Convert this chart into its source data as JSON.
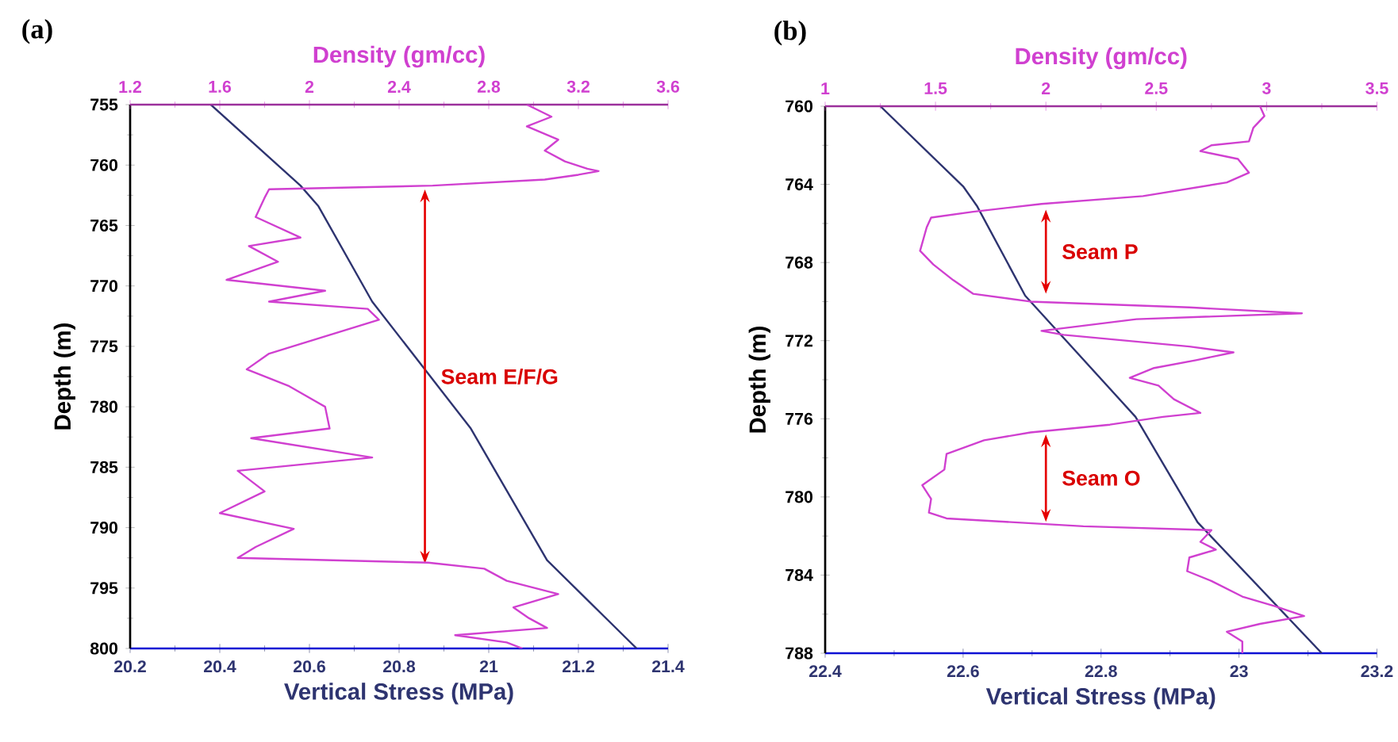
{
  "chart_data": [
    {
      "type": "line",
      "title": "(a)",
      "xlabel": "Vertical Stress (MPa)",
      "x2label": "Density (gm/cc)",
      "ylabel": "Depth (m)",
      "orientation": "horizontal",
      "xlim": [
        20.2,
        21.4
      ],
      "xticks": [
        20.2,
        20.4,
        20.6,
        20.8,
        21,
        21.2,
        21.4
      ],
      "x2lim": [
        1.2,
        3.6
      ],
      "x2ticks": [
        1.2,
        1.6,
        2,
        2.4,
        2.8,
        3.2,
        3.6
      ],
      "ylim": [
        800,
        755
      ],
      "yticks": [
        755,
        760,
        765,
        770,
        775,
        780,
        785,
        790,
        795,
        800
      ],
      "series": [
        {
          "color": "#d040d0",
          "axis": "x2",
          "x": [
            755,
            756,
            756.8,
            757.9,
            758.8,
            759.7,
            760.3,
            760.5,
            760.8,
            761.2,
            761.7,
            762,
            762.7,
            764.3,
            766,
            766.7,
            768,
            769.5,
            770.4,
            771.3,
            771.9,
            772.8,
            774.8,
            775.6,
            776.9,
            778.3,
            780,
            781.8,
            782.6,
            784.2,
            785.3,
            787,
            788.8,
            790.1,
            791.6,
            792.5,
            792.9,
            793.4,
            794.4,
            795.5,
            796.6,
            797.5,
            798.3,
            798.9,
            799.5,
            800
          ],
          "values": [
            2.97,
            3.08,
            2.97,
            3.11,
            3.05,
            3.14,
            3.24,
            3.29,
            3.2,
            3.05,
            2.55,
            1.82,
            1.8,
            1.76,
            1.96,
            1.73,
            1.86,
            1.63,
            2.07,
            1.82,
            2.26,
            2.31,
            1.96,
            1.82,
            1.72,
            1.91,
            2.07,
            2.09,
            1.74,
            2.28,
            1.68,
            1.8,
            1.6,
            1.93,
            1.76,
            1.68,
            2.53,
            2.78,
            2.88,
            3.11,
            2.91,
            2.98,
            3.06,
            2.65,
            2.88,
            2.95
          ]
        },
        {
          "color": "#2e3470",
          "x": [
            755,
            761.7,
            763.4,
            771.3,
            781.8,
            792.7,
            800
          ],
          "values": [
            20.38,
            20.58,
            20.62,
            20.74,
            20.96,
            21.13,
            21.33
          ]
        }
      ],
      "annotations": [
        "Seam E/F/G"
      ]
    },
    {
      "type": "line",
      "title": "(b)",
      "xlabel": "Vertical Stress (MPa)",
      "x2label": "Density (gm/cc)",
      "ylabel": "Depth (m)",
      "orientation": "horizontal",
      "xlim": [
        22.4,
        23.2
      ],
      "xticks": [
        22.4,
        22.6,
        22.8,
        23,
        23.2
      ],
      "x2lim": [
        1,
        3.5
      ],
      "x2ticks": [
        1,
        1.5,
        2,
        2.5,
        3,
        3.5
      ],
      "ylim": [
        788,
        760
      ],
      "yticks": [
        760,
        764,
        768,
        772,
        776,
        780,
        784,
        788
      ],
      "series": [
        {
          "color": "#d040d0",
          "axis": "x2",
          "x": [
            760,
            760.5,
            761.1,
            761.8,
            762,
            762.3,
            762.7,
            763.4,
            763.9,
            764.6,
            765,
            765.4,
            765.7,
            766.2,
            767.4,
            768.1,
            768.9,
            769.6,
            770,
            770.3,
            770.6,
            770.9,
            771.5,
            771.7,
            772.3,
            772.6,
            773,
            773.4,
            773.9,
            774.3,
            775,
            775.7,
            775.9,
            776.3,
            776.7,
            777.1,
            777.8,
            778.6,
            779.4,
            780.1,
            780.8,
            781.1,
            781.5,
            781.7,
            782.3,
            782.7,
            783.1,
            783.8,
            784.3,
            785.1,
            785.6,
            786.1,
            786.5,
            786.9,
            787.4,
            788
          ],
          "values": [
            2.97,
            2.99,
            2.94,
            2.92,
            2.75,
            2.7,
            2.87,
            2.92,
            2.82,
            2.44,
            1.98,
            1.67,
            1.48,
            1.46,
            1.43,
            1.49,
            1.58,
            1.67,
            1.93,
            2.65,
            3.16,
            2.41,
            1.98,
            2.08,
            2.65,
            2.85,
            2.68,
            2.49,
            2.38,
            2.51,
            2.58,
            2.7,
            2.53,
            2.29,
            1.93,
            1.72,
            1.55,
            1.54,
            1.44,
            1.48,
            1.47,
            1.55,
            2.17,
            2.75,
            2.7,
            2.77,
            2.65,
            2.64,
            2.75,
            2.89,
            3.04,
            3.17,
            2.97,
            2.82,
            2.89,
            2.89
          ]
        },
        {
          "color": "#2e3470",
          "x": [
            760,
            764.1,
            765.1,
            769.7,
            775.9,
            781.3,
            788
          ],
          "values": [
            22.48,
            22.6,
            22.62,
            22.69,
            22.85,
            22.94,
            23.12
          ]
        }
      ],
      "annotations": [
        "Seam P",
        "Seam O"
      ]
    }
  ]
}
